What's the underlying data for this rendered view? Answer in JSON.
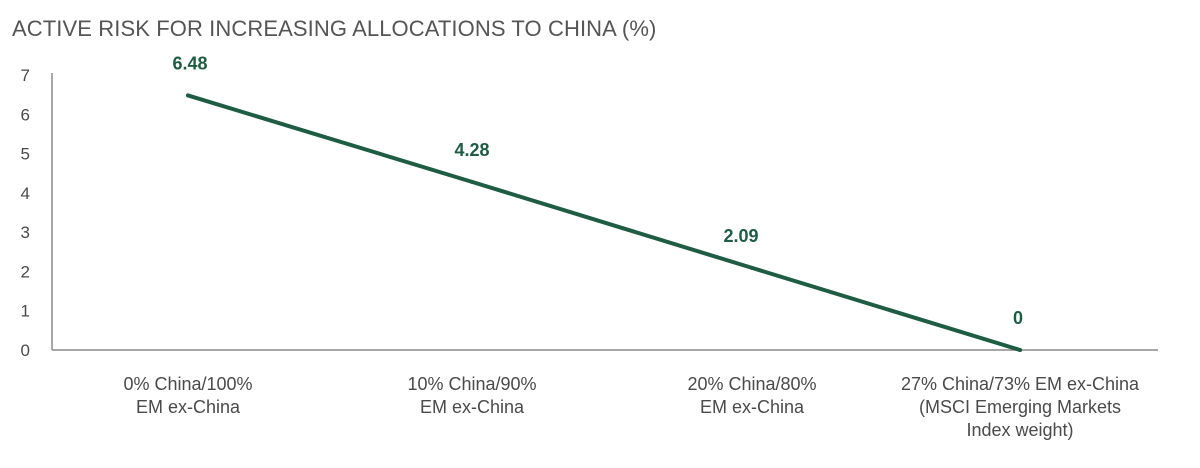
{
  "chart_data": {
    "type": "line",
    "title": "ACTIVE RISK FOR INCREASING ALLOCATIONS TO CHINA (%)",
    "xlabel": "",
    "ylabel": "",
    "ylim": [
      0,
      7
    ],
    "yticks": [
      0,
      1,
      2,
      3,
      4,
      5,
      6,
      7
    ],
    "grid": false,
    "categories": [
      [
        "0% China/100%",
        "EM ex-China"
      ],
      [
        "10% China/90%",
        "EM ex-China"
      ],
      [
        "20% China/80%",
        "EM ex-China"
      ],
      [
        "27% China/73% EM ex-China",
        "(MSCI Emerging Markets",
        "Index weight)"
      ]
    ],
    "series": [
      {
        "name": "Active risk",
        "values": [
          6.48,
          4.28,
          2.09,
          0
        ],
        "data_labels": [
          "6.48",
          "4.28",
          "2.09",
          "0"
        ]
      }
    ],
    "colors": {
      "line": "#1e5c44",
      "axis": "#8a8a8a",
      "label": "#1e5c44"
    }
  }
}
